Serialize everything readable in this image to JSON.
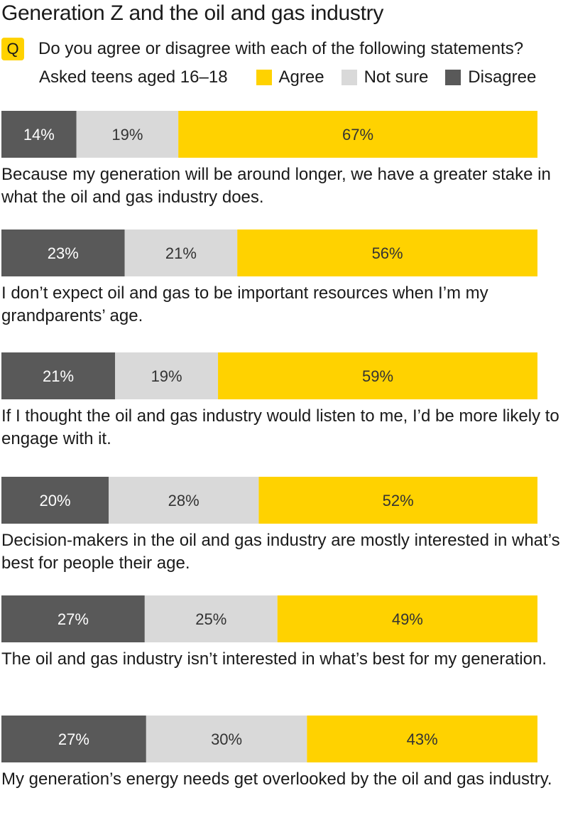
{
  "title": "Generation Z and the oil and gas industry",
  "question": {
    "badge": "Q",
    "text": "Do you agree or disagree with each of the following statements?"
  },
  "subtitle": "Asked teens aged 16–18",
  "colors": {
    "agree": "#FFD200",
    "not_sure": "#D9D9D9",
    "disagree": "#595959",
    "badge": "#FFD200"
  },
  "chart_data": {
    "type": "bar",
    "orientation": "horizontal",
    "stacked": true,
    "xlim": [
      0,
      100
    ],
    "unit": "%",
    "legend_placement": "top-right",
    "grid": false,
    "series": [
      {
        "name": "Disagree",
        "color": "#595959",
        "values": [
          14,
          23,
          21,
          20,
          27,
          27
        ]
      },
      {
        "name": "Not sure",
        "color": "#D9D9D9",
        "values": [
          19,
          21,
          19,
          28,
          25,
          30
        ]
      },
      {
        "name": "Agree",
        "color": "#FFD200",
        "values": [
          67,
          56,
          59,
          52,
          49,
          43
        ]
      }
    ],
    "categories": [
      "Because my generation will be around longer, we have a greater stake in what the oil and gas industry does.",
      "I don’t expect oil and gas to be important resources when I’m my grandparents’ age.",
      "If I thought the oil and gas industry would listen to me, I’d be more likely to engage with it.",
      "Decision-makers in the oil and gas industry are mostly interested in what’s best for people their age.",
      "The oil and gas industry isn’t interested in what’s best for my generation.",
      "My generation’s energy needs get overlooked by the oil and gas industry."
    ],
    "data_labels": [
      [
        "14%",
        "19%",
        "67%"
      ],
      [
        "23%",
        "21%",
        "56%"
      ],
      [
        "21%",
        "19%",
        "59%"
      ],
      [
        "20%",
        "28%",
        "52%"
      ],
      [
        "27%",
        "25%",
        "49%"
      ],
      [
        "27%",
        "30%",
        "43%"
      ]
    ]
  }
}
